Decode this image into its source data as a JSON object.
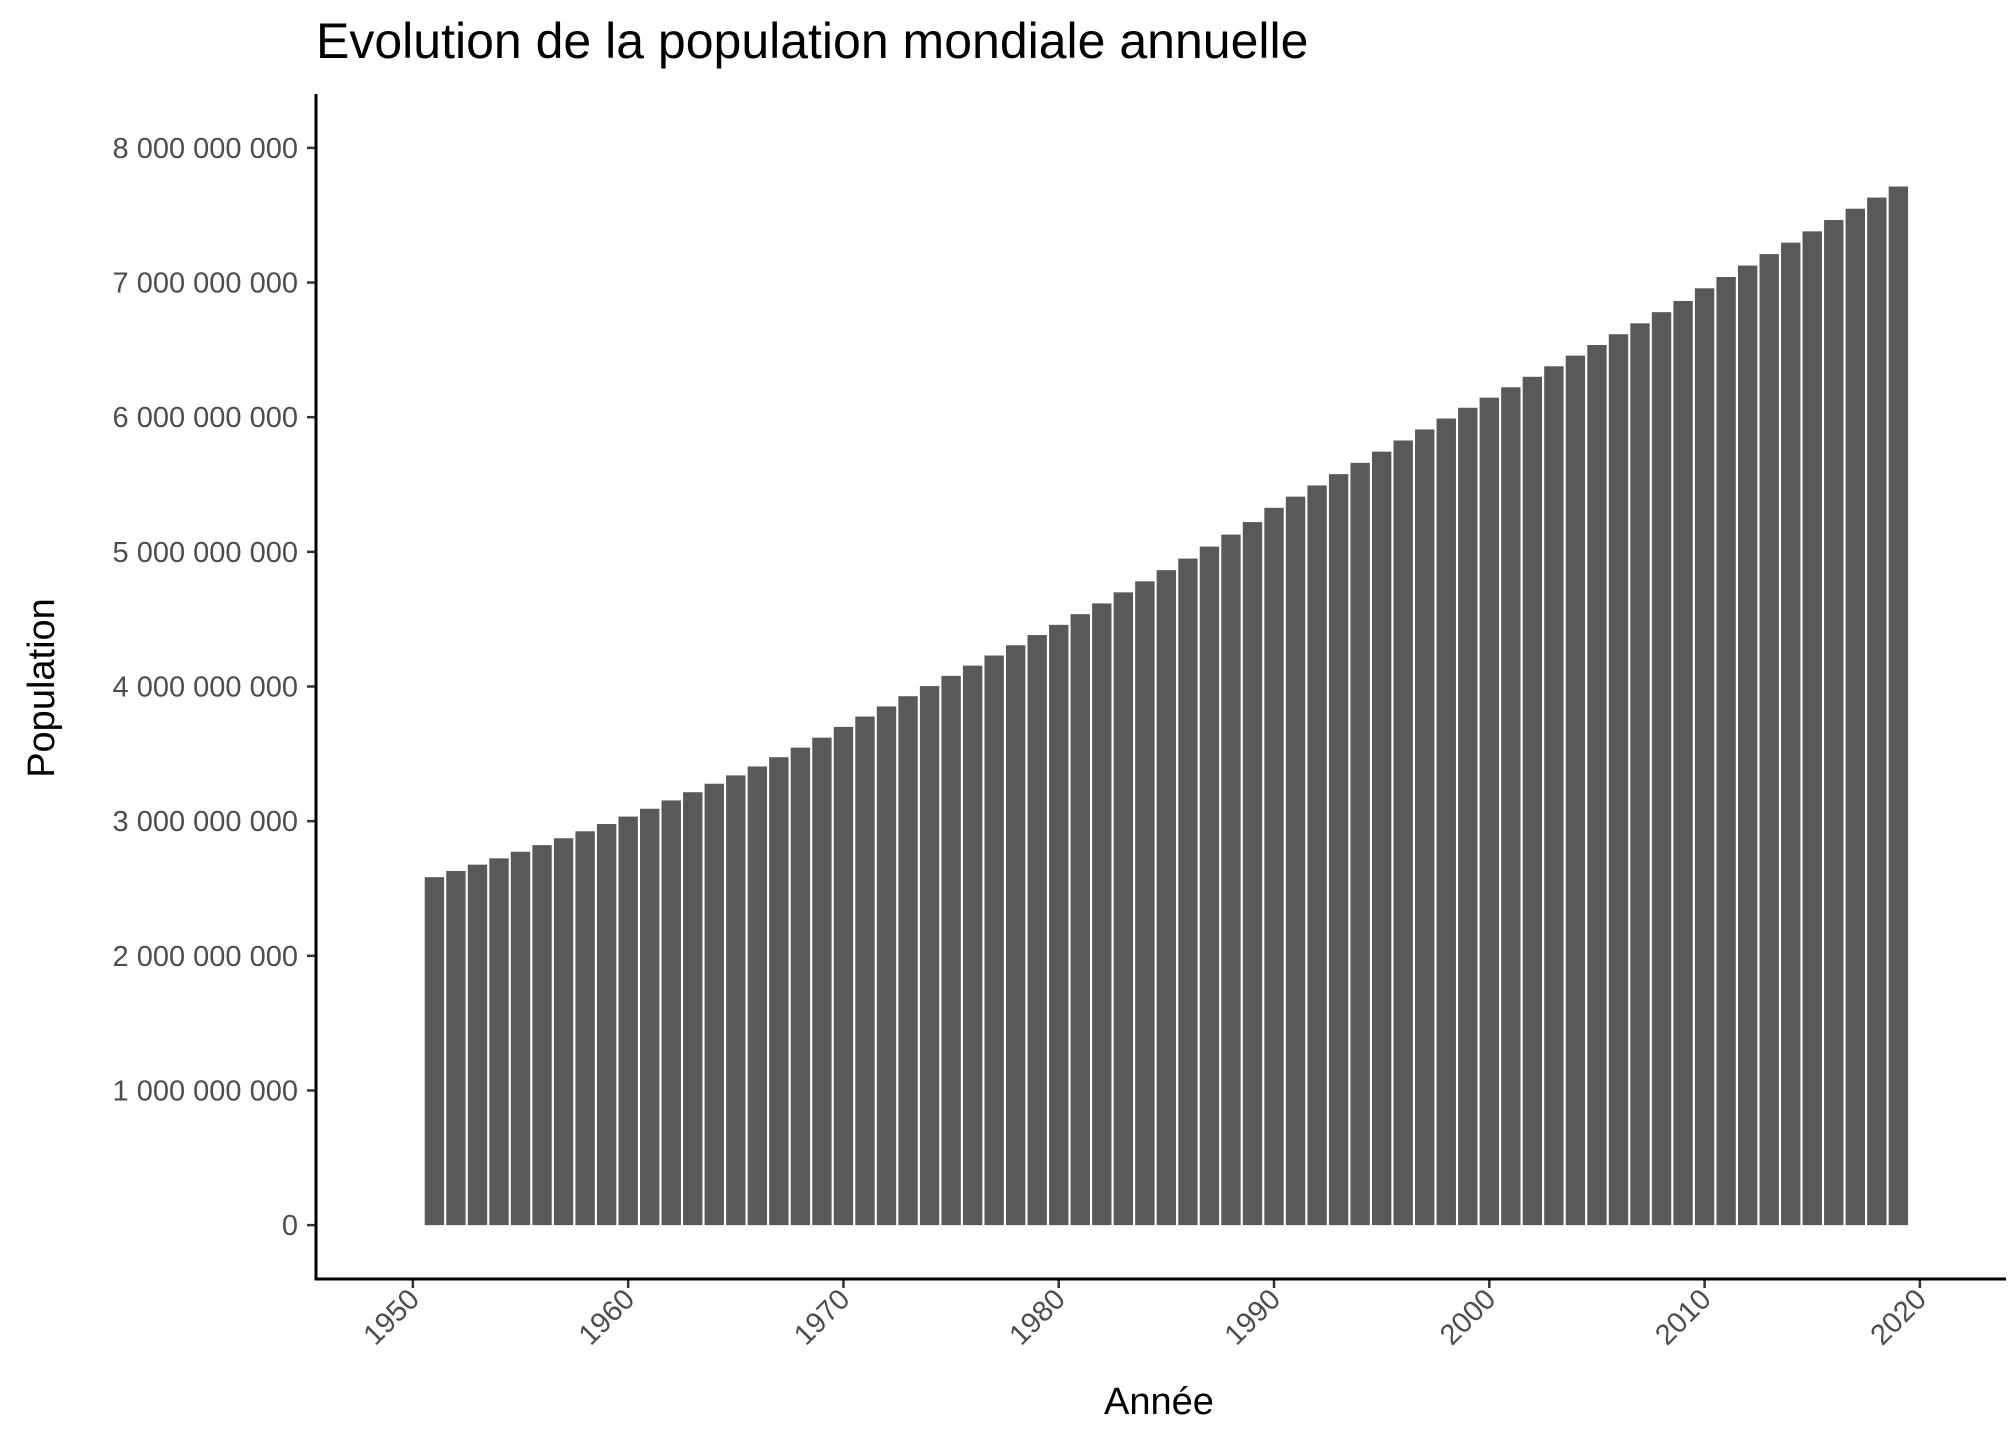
{
  "chart_data": {
    "type": "bar",
    "title": "Evolution de la population mondiale annuelle",
    "xlabel": "Année",
    "ylabel": "Population",
    "x": [
      1951,
      1952,
      1953,
      1954,
      1955,
      1956,
      1957,
      1958,
      1959,
      1960,
      1961,
      1962,
      1963,
      1964,
      1965,
      1966,
      1967,
      1968,
      1969,
      1970,
      1971,
      1972,
      1973,
      1974,
      1975,
      1976,
      1977,
      1978,
      1979,
      1980,
      1981,
      1982,
      1983,
      1984,
      1985,
      1986,
      1987,
      1988,
      1989,
      1990,
      1991,
      1992,
      1993,
      1994,
      1995,
      1996,
      1997,
      1998,
      1999,
      2000,
      2001,
      2002,
      2003,
      2004,
      2005,
      2006,
      2007,
      2008,
      2009,
      2010,
      2011,
      2012,
      2013,
      2014,
      2015,
      2016,
      2017,
      2018,
      2019
    ],
    "values": [
      2584000000,
      2630000000,
      2677000000,
      2724000000,
      2773000000,
      2822000000,
      2873000000,
      2925000000,
      2979000000,
      3034000000,
      3092000000,
      3154000000,
      3215000000,
      3278000000,
      3340000000,
      3406000000,
      3475000000,
      3546000000,
      3620000000,
      3700000000,
      3777000000,
      3852000000,
      3928000000,
      4003000000,
      4079000000,
      4155000000,
      4230000000,
      4306000000,
      4382000000,
      4458000000,
      4537000000,
      4617000000,
      4699000000,
      4781000000,
      4864000000,
      4950000000,
      5039000000,
      5128000000,
      5221000000,
      5327000000,
      5410000000,
      5493000000,
      5577000000,
      5661000000,
      5744000000,
      5827000000,
      5909000000,
      5990000000,
      6070000000,
      6145000000,
      6222000000,
      6300000000,
      6378000000,
      6457000000,
      6536000000,
      6616000000,
      6697000000,
      6780000000,
      6863000000,
      6957000000,
      7041000000,
      7126000000,
      7211000000,
      7296000000,
      7380000000,
      7464000000,
      7548000000,
      7631000000,
      7713000000
    ],
    "xlim": [
      1945.5,
      2024
    ],
    "ylim": [
      -400000000,
      8400000000
    ],
    "xticks": [
      1950,
      1960,
      1970,
      1980,
      1990,
      2000,
      2010,
      2020
    ],
    "xtick_labels": [
      "1950",
      "1960",
      "1970",
      "1980",
      "1990",
      "2000",
      "2010",
      "2020"
    ],
    "yticks": [
      0,
      1000000000,
      2000000000,
      3000000000,
      4000000000,
      5000000000,
      6000000000,
      7000000000,
      8000000000
    ],
    "ytick_labels": [
      "0",
      "1 000 000 000",
      "2 000 000 000",
      "3 000 000 000",
      "4 000 000 000",
      "5 000 000 000",
      "6 000 000 000",
      "7 000 000 000",
      "8 000 000 000"
    ],
    "bar_color": "#595959",
    "grid": false,
    "legend": false
  }
}
